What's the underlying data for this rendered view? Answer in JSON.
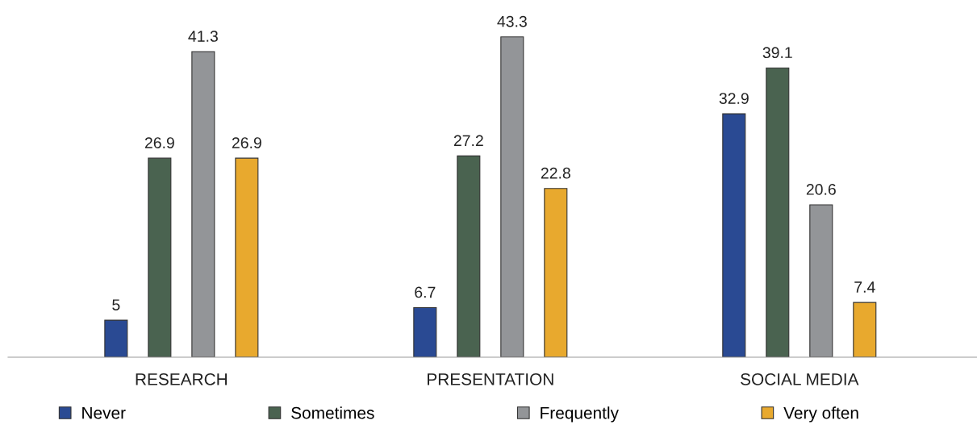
{
  "chart_data": {
    "type": "bar",
    "categories": [
      "RESEARCH",
      "PRESENTATION",
      "SOCIAL MEDIA"
    ],
    "series": [
      {
        "name": "Never",
        "color": "#2a4a93",
        "values": [
          5,
          6.7,
          32.9
        ]
      },
      {
        "name": "Sometimes",
        "color": "#4a6350",
        "values": [
          26.9,
          27.2,
          39.1
        ]
      },
      {
        "name": "Frequently",
        "color": "#939598",
        "values": [
          41.3,
          43.3,
          20.6
        ]
      },
      {
        "name": "Very often",
        "color": "#e8a92e",
        "values": [
          26.9,
          22.8,
          7.4
        ]
      }
    ],
    "data_labels": true,
    "legend": "bottom",
    "grid": false
  }
}
